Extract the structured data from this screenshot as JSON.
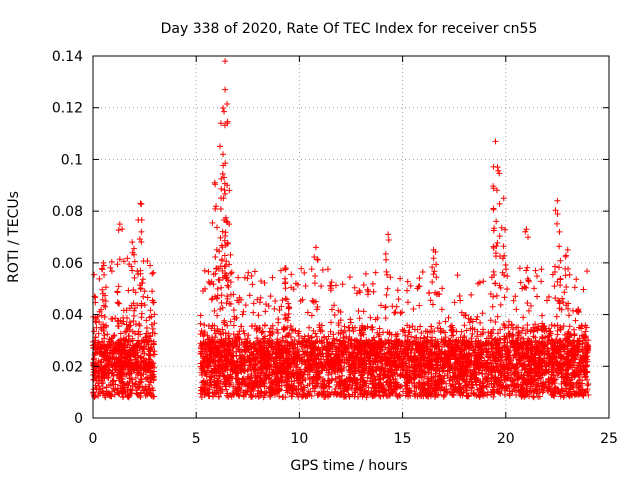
{
  "chart_data": {
    "type": "scatter",
    "title": "Day 338 of 2020, Rate Of TEC Index for receiver cn55",
    "xlabel": "GPS time / hours",
    "ylabel": "ROTI / TECUs",
    "xlim": [
      0,
      25
    ],
    "ylim": [
      0,
      0.14
    ],
    "xticks": [
      0,
      5,
      10,
      15,
      20,
      25
    ],
    "xtick_labels": [
      "0",
      "5",
      "10",
      "15",
      "20",
      "25"
    ],
    "yticks": [
      0,
      0.02,
      0.04,
      0.06,
      0.08,
      0.1,
      0.12,
      0.14
    ],
    "ytick_labels": [
      "0",
      "0.02",
      "0.04",
      "0.06",
      "0.08",
      "0.1",
      "0.12",
      "0.14"
    ],
    "grid": true,
    "marker": "+",
    "color": "#ff0000",
    "series": [
      {
        "name": "ROTI",
        "segments": [
          {
            "x_start": 0.0,
            "x_end": 3.0,
            "y_low": 0.004,
            "y_mid": 0.018,
            "y_high": 0.04
          },
          {
            "x_start": 5.2,
            "x_end": 24.0,
            "y_low": 0.004,
            "y_mid": 0.018,
            "y_high": 0.036
          }
        ],
        "peaks": [
          {
            "x": 0.5,
            "y": 0.06
          },
          {
            "x": 1.3,
            "y": 0.075
          },
          {
            "x": 1.9,
            "y": 0.068
          },
          {
            "x": 2.3,
            "y": 0.083
          },
          {
            "x": 2.3,
            "y": 0.057
          },
          {
            "x": 5.9,
            "y": 0.091
          },
          {
            "x": 6.0,
            "y": 0.065
          },
          {
            "x": 6.2,
            "y": 0.114
          },
          {
            "x": 6.3,
            "y": 0.102
          },
          {
            "x": 6.35,
            "y": 0.093
          },
          {
            "x": 6.4,
            "y": 0.138
          },
          {
            "x": 6.4,
            "y": 0.127
          },
          {
            "x": 6.5,
            "y": 0.09
          },
          {
            "x": 6.6,
            "y": 0.075
          },
          {
            "x": 9.3,
            "y": 0.058
          },
          {
            "x": 10.8,
            "y": 0.066
          },
          {
            "x": 14.3,
            "y": 0.071
          },
          {
            "x": 16.5,
            "y": 0.065
          },
          {
            "x": 19.5,
            "y": 0.107
          },
          {
            "x": 19.6,
            "y": 0.097
          },
          {
            "x": 19.4,
            "y": 0.081
          },
          {
            "x": 19.9,
            "y": 0.085
          },
          {
            "x": 21.0,
            "y": 0.073
          },
          {
            "x": 22.5,
            "y": 0.084
          },
          {
            "x": 22.6,
            "y": 0.072
          },
          {
            "x": 23.0,
            "y": 0.065
          }
        ]
      }
    ]
  }
}
